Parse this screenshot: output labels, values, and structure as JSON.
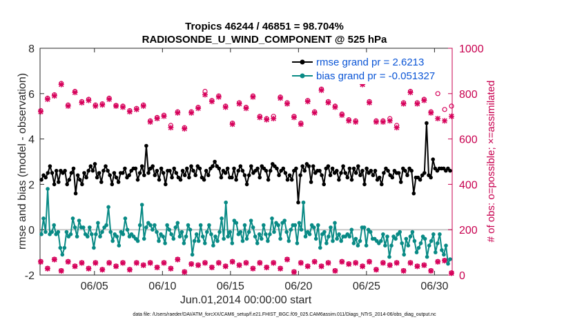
{
  "chart_data": {
    "type": "line",
    "title": [
      "Tropics 46244 / 46851 = 98.704%",
      "RADIOSONDE_U_WIND_COMPONENT @ 525 hPa"
    ],
    "xlabel": "Jun.01,2014 00:00:00 start",
    "ylabel_left": "rmse and bias (model - observation)",
    "ylabel_right": "# of obs: o=possible; ×=assimilated",
    "xlim": [
      1,
      31.3
    ],
    "ylim_left": [
      -2,
      8
    ],
    "ylim_right": [
      0,
      1000
    ],
    "x_ticks": [
      5,
      10,
      15,
      20,
      25,
      30
    ],
    "x_tick_labels": [
      "06/05",
      "06/10",
      "06/15",
      "06/20",
      "06/25",
      "06/30"
    ],
    "y_ticks_left": [
      -2,
      0,
      2,
      4,
      6,
      8
    ],
    "y_ticks_right": [
      0,
      200,
      400,
      600,
      800,
      1000
    ],
    "zero_line": 0,
    "footnote": "data file: /Users/raeder/DAI/ATM_forcXX/CAM6_setup/f.e21.FHIST_BGC.f09_025.CAM6assim.011/Diags_NTrS_2014-06/obs_diag_output.nc",
    "colors": {
      "rmse": "#000000",
      "bias": "#088a85",
      "obs": "#d6005a",
      "legend_text": "#0a55d6",
      "zero_line": "#c8c8c8"
    },
    "series": [
      {
        "name": "rmse grand pr = 2.6213",
        "axis": "left",
        "values": [
          2.2,
          2.4,
          2.3,
          2.5,
          2.8,
          2.5,
          2.0,
          2.6,
          2.1,
          2.6,
          2.5,
          2.6,
          2.0,
          2.2,
          2.5,
          2.7,
          1.6,
          2.4,
          2.2,
          2.0,
          2.5,
          2.3,
          2.6,
          2.8,
          2.6,
          2.9,
          2.3,
          2.5,
          2.1,
          2.6,
          2.8,
          2.6,
          2.4,
          2.0,
          2.5,
          2.3,
          2.1,
          2.5,
          2.5,
          2.7,
          2.3,
          2.4,
          2.6,
          2.7,
          2.7,
          2.2,
          2.5,
          2.8,
          2.4,
          3.7,
          2.5,
          2.7,
          2.8,
          2.4,
          2.6,
          2.2,
          2.7,
          2.5,
          2.0,
          2.6,
          2.6,
          2.3,
          2.7,
          2.5,
          2.3,
          2.2,
          2.6,
          2.4,
          2.7,
          2.3,
          2.8,
          2.6,
          2.4,
          2.8,
          2.7,
          2.3,
          2.2,
          2.6,
          2.4,
          2.7,
          2.8,
          3.0,
          2.8,
          2.7,
          2.3,
          2.6,
          2.5,
          2.7,
          2.3,
          2.3,
          2.7,
          2.2,
          2.6,
          2.8,
          2.6,
          2.4,
          2.0,
          2.4,
          2.8,
          2.5,
          2.6,
          2.7,
          2.3,
          2.8,
          2.7,
          2.6,
          2.2,
          2.6,
          2.9,
          2.8,
          2.7,
          2.4,
          2.6,
          2.7,
          2.5,
          2.2,
          2.4,
          2.2,
          2.6,
          2.7,
          1.2,
          2.4,
          2.8,
          2.6,
          2.9,
          2.8,
          2.1,
          2.8,
          2.5,
          2.6,
          2.6,
          2.4,
          2.0,
          2.7,
          2.8,
          2.4,
          2.7,
          2.5,
          2.6,
          2.2,
          2.5,
          2.8,
          2.5,
          2.3,
          2.7,
          2.2,
          2.7,
          2.5,
          2.8,
          2.4,
          2.6,
          2.0,
          2.7,
          2.5,
          2.6,
          2.4,
          2.6,
          2.2,
          2.3,
          2.0,
          2.5,
          2.7,
          2.6,
          2.4,
          2.3,
          2.6,
          2.5,
          2.5,
          2.1,
          2.7,
          2.6,
          2.4,
          2.7,
          2.6,
          1.6,
          2.3,
          2.3,
          2.2,
          2.4,
          2.5,
          4.7,
          2.4,
          2.3,
          3.1,
          2.7,
          2.6,
          2.7,
          2.7,
          2.7,
          2.6,
          2.7,
          2.6
        ]
      },
      {
        "name": "bias grand pr = -0.051327",
        "axis": "left",
        "values": [
          -0.2,
          0.5,
          -0.1,
          1.8,
          -0.2,
          -0.1,
          0.2,
          -0.2,
          -0.1,
          -0.8,
          -1.1,
          -0.8,
          -0.1,
          -0.3,
          -0.2,
          0.5,
          0.1,
          -0.3,
          0.4,
          0.1,
          0.1,
          -0.2,
          -0.3,
          0.1,
          -0.2,
          -0.8,
          -0.2,
          0.3,
          -0.3,
          -0.1,
          0.1,
          0.2,
          1.0,
          -0.1,
          -0.5,
          -0.2,
          -0.3,
          -0.7,
          -0.1,
          -0.2,
          0.5,
          0.0,
          -0.3,
          -0.2,
          -0.3,
          -0.4,
          -0.5,
          0.2,
          1.1,
          -0.4,
          0.1,
          0.3,
          0.2,
          0.0,
          0.2,
          -0.1,
          -0.5,
          -0.2,
          -0.3,
          -0.6,
          0.2,
          0.0,
          -0.2,
          -0.4,
          0.1,
          0.3,
          -0.3,
          -0.1,
          -0.6,
          -0.3,
          0.2,
          0.0,
          -1.1,
          -0.5,
          -0.2,
          -0.5,
          0.2,
          -0.3,
          -0.6,
          -0.1,
          0.2,
          -0.2,
          -0.7,
          -0.3,
          -0.5,
          -0.1,
          0.5,
          -0.4,
          1.2,
          -0.3,
          -0.1,
          -0.6,
          0.4,
          0.3,
          -0.2,
          -0.1,
          -0.5,
          0.2,
          -0.4,
          -0.1,
          0.4,
          0.1,
          -0.3,
          -0.6,
          -0.2,
          -0.4,
          0.2,
          -0.2,
          -0.5,
          -0.2,
          0.5,
          -0.1,
          0.3,
          0.2,
          -0.4,
          0.3,
          0.4,
          -0.1,
          -0.5,
          0.0,
          0.2,
          0.2,
          -0.6,
          0.3,
          0.0,
          1.2,
          -0.3,
          -0.1,
          -0.2,
          0.2,
          0.1,
          -0.4,
          0.2,
          -0.8,
          -0.2,
          -0.1,
          -0.6,
          -0.3,
          0.1,
          -0.5,
          0.3,
          -0.4,
          -0.2,
          -0.5,
          -0.3,
          -0.3,
          -0.2,
          -0.3,
          0.0,
          -0.6,
          -0.4,
          -0.7,
          -0.5,
          0.1,
          0.1,
          -0.7,
          0.0,
          -0.1,
          -0.4,
          -0.4,
          -0.5,
          -0.6,
          -0.5,
          -0.2,
          -0.7,
          -0.3,
          -1.2,
          -0.7,
          -0.3,
          -0.4,
          -0.2,
          -0.1,
          -0.6,
          -1.1,
          -0.4,
          -0.7,
          -0.3,
          -0.1,
          -0.5,
          -1.0,
          -0.8,
          -0.6,
          -0.3,
          -0.4,
          -1.2,
          -0.7,
          -0.5,
          -0.2,
          -1.0,
          -0.6,
          -0.2,
          -0.9,
          -1.1,
          -0.7,
          -1.5,
          -1.3
        ]
      },
      {
        "name": "obs possible (o) - upper",
        "axis": "right",
        "values": [
          725,
          780,
          795,
          845,
          750,
          810,
          765,
          775,
          750,
          755,
          780,
          748,
          745,
          725,
          735,
          750,
          680,
          695,
          705,
          660,
          720,
          650,
          720,
          740,
          810,
          770,
          790,
          745,
          670,
          760,
          740,
          790,
          700,
          690,
          700,
          785,
          760,
          700,
          670,
          770,
          720,
          820,
          765,
          745,
          710,
          685,
          680,
          860,
          765,
          680,
          680,
          690,
          660,
          760,
          810,
          760,
          775,
          720,
          800,
          730,
          745
        ]
      },
      {
        "name": "obs assimilated (×) - upper",
        "axis": "right",
        "values": [
          720,
          775,
          790,
          840,
          745,
          805,
          760,
          770,
          745,
          750,
          775,
          745,
          740,
          720,
          730,
          745,
          675,
          690,
          700,
          650,
          715,
          645,
          715,
          735,
          795,
          765,
          785,
          740,
          665,
          755,
          735,
          785,
          695,
          685,
          690,
          780,
          755,
          695,
          665,
          765,
          715,
          815,
          760,
          740,
          705,
          680,
          675,
          840,
          760,
          675,
          675,
          680,
          650,
          755,
          805,
          755,
          770,
          715,
          690,
          680,
          700
        ]
      },
      {
        "name": "obs possible (o) - lower",
        "axis": "right",
        "values": [
          60,
          30,
          70,
          20,
          60,
          40,
          55,
          30,
          55,
          25,
          55,
          40,
          55,
          25,
          55,
          45,
          55,
          35,
          55,
          30,
          70,
          15,
          50,
          45,
          55,
          35,
          55,
          40,
          60,
          45,
          55,
          30,
          55,
          35,
          55,
          30,
          70,
          15,
          55,
          40,
          60,
          40,
          55,
          20,
          60,
          50,
          55,
          40,
          60,
          25,
          55,
          45,
          55,
          20,
          55,
          40,
          45,
          20,
          60,
          65,
          10
        ]
      },
      {
        "name": "obs assimilated (×) - lower",
        "axis": "right",
        "values": [
          58,
          28,
          68,
          18,
          58,
          38,
          53,
          28,
          53,
          23,
          53,
          38,
          53,
          23,
          53,
          43,
          53,
          33,
          53,
          28,
          68,
          13,
          48,
          43,
          53,
          33,
          53,
          38,
          58,
          43,
          53,
          28,
          53,
          33,
          53,
          28,
          68,
          13,
          53,
          38,
          58,
          38,
          53,
          18,
          58,
          48,
          53,
          38,
          58,
          23,
          53,
          43,
          53,
          18,
          53,
          38,
          43,
          18,
          58,
          63,
          8
        ]
      }
    ]
  }
}
